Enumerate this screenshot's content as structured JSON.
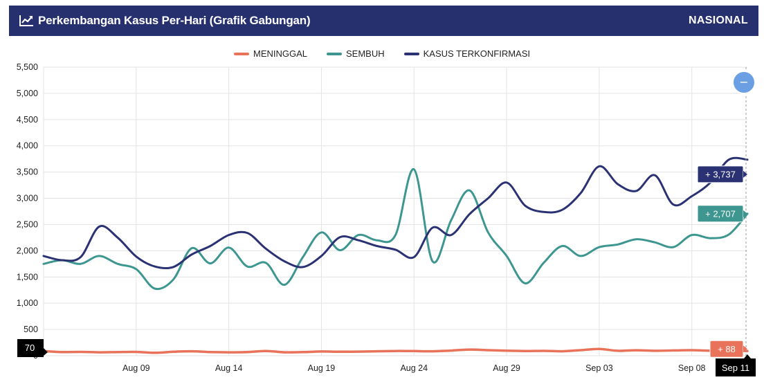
{
  "header": {
    "title": "Perkembangan Kasus Per-Hari (Grafik Gabungan)",
    "scope": "NASIONAL",
    "icon": "line-chart-icon"
  },
  "colors": {
    "header_bg": "#27306f",
    "meninggal": "#e8735a",
    "sembuh": "#3d9690",
    "terkonfirmasi": "#2b3274",
    "zoom_button": "#6a9fe3"
  },
  "zoom_button": {
    "icon": "minus-icon",
    "label": "−"
  },
  "crosshair": {
    "x_label": "Sep 11",
    "y_label": "70",
    "tooltips": {
      "meninggal": "+ 88",
      "sembuh": "+ 2,707",
      "terkonfirmasi": "+ 3,737"
    }
  },
  "chart_data": {
    "type": "line",
    "title": "Perkembangan Kasus Per-Hari (Grafik Gabungan)",
    "legend_position": "top-center",
    "grid": true,
    "ylim": [
      0,
      5500
    ],
    "y_ticks": [
      "0",
      "500",
      "1,000",
      "1,500",
      "2,000",
      "2,500",
      "3,000",
      "3,500",
      "4,000",
      "4,500",
      "5,000",
      "5,500"
    ],
    "x_ticks": [
      "Aug 09",
      "Aug 14",
      "Aug 19",
      "Aug 24",
      "Aug 29",
      "Sep 03",
      "Sep 08"
    ],
    "x": [
      "Aug 04",
      "Aug 05",
      "Aug 06",
      "Aug 07",
      "Aug 08",
      "Aug 09",
      "Aug 10",
      "Aug 11",
      "Aug 12",
      "Aug 13",
      "Aug 14",
      "Aug 15",
      "Aug 16",
      "Aug 17",
      "Aug 18",
      "Aug 19",
      "Aug 20",
      "Aug 21",
      "Aug 22",
      "Aug 23",
      "Aug 24",
      "Aug 25",
      "Aug 26",
      "Aug 27",
      "Aug 28",
      "Aug 29",
      "Aug 30",
      "Aug 31",
      "Sep 01",
      "Sep 02",
      "Sep 03",
      "Sep 04",
      "Sep 05",
      "Sep 06",
      "Sep 07",
      "Sep 08",
      "Sep 09",
      "Sep 10",
      "Sep 11"
    ],
    "series": [
      {
        "name": "MENINGGAL",
        "values": [
          88,
          70,
          73,
          65,
          70,
          72,
          55,
          75,
          85,
          70,
          65,
          68,
          90,
          65,
          68,
          80,
          75,
          78,
          85,
          90,
          88,
          85,
          98,
          118,
          105,
          95,
          89,
          92,
          85,
          106,
          129,
          94,
          104,
          94,
          100,
          106,
          96,
          106,
          88
        ]
      },
      {
        "name": "SEMBUH",
        "values": [
          1750,
          1820,
          1750,
          1900,
          1750,
          1650,
          1280,
          1450,
          2050,
          1760,
          2060,
          1700,
          1770,
          1350,
          1880,
          2350,
          2010,
          2300,
          2200,
          2300,
          3550,
          1800,
          2580,
          3150,
          2350,
          1900,
          1380,
          1770,
          2090,
          1900,
          2070,
          2120,
          2220,
          2160,
          2070,
          2300,
          2240,
          2310,
          2707
        ]
      },
      {
        "name": "KASUS TERKONFIRMASI",
        "values": [
          1900,
          1820,
          1880,
          2460,
          2250,
          1890,
          1700,
          1690,
          1930,
          2090,
          2300,
          2340,
          2040,
          1800,
          1690,
          1900,
          2260,
          2200,
          2090,
          2020,
          1880,
          2440,
          2300,
          2700,
          3000,
          3300,
          2860,
          2740,
          2780,
          3100,
          3610,
          3270,
          3140,
          3440,
          2880,
          3040,
          3300,
          3737,
          3737
        ]
      }
    ]
  }
}
